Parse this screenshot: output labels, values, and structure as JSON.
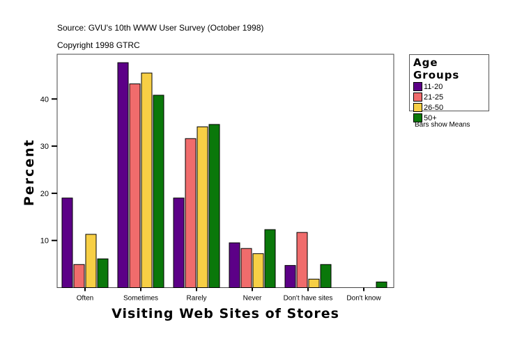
{
  "chart_data": {
    "type": "bar",
    "title": "",
    "source": "Source: GVU's 10th WWW User Survey (October 1998)",
    "copyright": "Copyright 1998 GTRC",
    "xlabel": "Visiting Web Sites of Stores",
    "ylabel": "Percent",
    "ylim": [
      0,
      50
    ],
    "yticks": [
      10,
      20,
      30,
      40
    ],
    "categories": [
      "Often",
      "Sometimes",
      "Rarely",
      "Never",
      "Don't have sites",
      "Don't know"
    ],
    "legend_title": "Age Groups",
    "legend_placement": "right",
    "note": "Bars show Means",
    "series": [
      {
        "name": "11-20",
        "color": "#5c0087",
        "values": [
          19.0,
          47.7,
          19.0,
          9.5,
          4.7,
          0
        ]
      },
      {
        "name": "21-25",
        "color": "#f06c6c",
        "values": [
          4.9,
          43.2,
          31.6,
          8.3,
          11.7,
          0
        ]
      },
      {
        "name": "26-50",
        "color": "#f7cf45",
        "values": [
          11.3,
          45.5,
          34.1,
          7.2,
          1.8,
          0
        ]
      },
      {
        "name": "50+",
        "color": "#0a780a",
        "values": [
          6.1,
          40.8,
          34.6,
          12.3,
          4.9,
          1.2
        ]
      }
    ]
  }
}
